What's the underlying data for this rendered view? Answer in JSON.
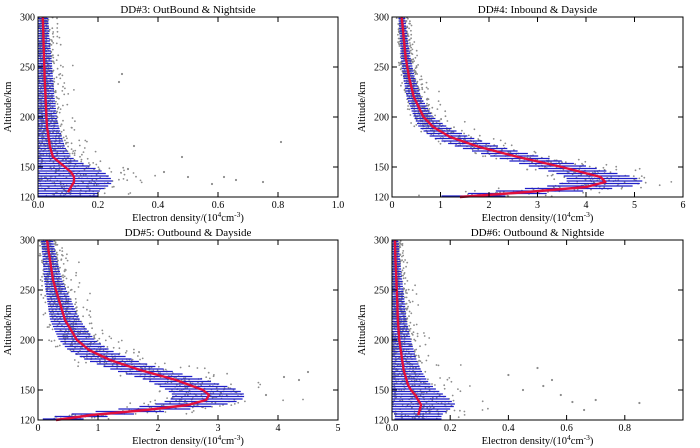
{
  "figure": {
    "kind": "four-panel electron density altitude profiles"
  },
  "chart_data": [
    {
      "type": "scatter",
      "title": "DD#3: OutBound & Nightside",
      "xlabel_main": "Electron density/(10",
      "xlabel_exp": "4",
      "xlabel_unit": "cm",
      "xlabel_uexp": "-3",
      "xlabel_close": ")",
      "ylabel": "Altitude/km",
      "xlim": [
        0,
        1.0
      ],
      "ylim": [
        120,
        300
      ],
      "xticks": [
        0,
        0.2,
        0.4,
        0.6,
        0.8,
        1.0
      ],
      "xtick_labels": [
        "0.0",
        "0.2",
        "0.4",
        "0.6",
        "0.8",
        "1.0"
      ],
      "yticks": [
        150,
        200,
        250,
        300
      ],
      "ytick_labels": [
        "150",
        "200",
        "250",
        "300"
      ],
      "y_label_bottom": "120",
      "mean_profile": {
        "altitude": [
          125,
          130,
          135,
          140,
          145,
          150,
          155,
          160,
          170,
          180,
          190,
          200,
          220,
          240,
          260,
          280,
          300
        ],
        "density": [
          0.1,
          0.11,
          0.12,
          0.12,
          0.11,
          0.09,
          0.07,
          0.05,
          0.04,
          0.035,
          0.03,
          0.028,
          0.025,
          0.022,
          0.02,
          0.018,
          0.016
        ]
      },
      "spread": [
        0.1,
        0.12,
        0.13,
        0.12,
        0.11,
        0.09,
        0.07,
        0.06,
        0.05,
        0.045,
        0.04,
        0.035,
        0.03,
        0.028,
        0.025,
        0.02,
        0.018
      ],
      "scatter_note": "raw measurements (grey dots), outliers up to 0.8",
      "outliers": [
        [
          0.62,
          140
        ],
        [
          0.75,
          135
        ],
        [
          0.5,
          140
        ],
        [
          0.58,
          133
        ],
        [
          0.48,
          160
        ],
        [
          0.81,
          175
        ],
        [
          0.3,
          148
        ],
        [
          0.28,
          243
        ],
        [
          0.27,
          235
        ],
        [
          0.42,
          145
        ],
        [
          0.32,
          171
        ],
        [
          0.66,
          137
        ]
      ]
    },
    {
      "type": "scatter",
      "title": "DD#4: Inbound & Dayside",
      "xlabel_main": "Electron density/(10",
      "xlabel_exp": "4",
      "xlabel_unit": "cm",
      "xlabel_uexp": "-3",
      "xlabel_close": ")",
      "ylabel": "Altitude/km",
      "xlim": [
        0,
        6
      ],
      "ylim": [
        120,
        300
      ],
      "xticks": [
        0,
        1,
        2,
        3,
        4,
        5,
        6
      ],
      "xtick_labels": [
        "0",
        "1",
        "2",
        "3",
        "4",
        "5",
        "6"
      ],
      "yticks": [
        150,
        200,
        250,
        300
      ],
      "ytick_labels": [
        "150",
        "200",
        "250",
        "300"
      ],
      "y_label_bottom": "120",
      "mean_profile": {
        "altitude": [
          120,
          125,
          130,
          135,
          140,
          145,
          150,
          160,
          170,
          180,
          190,
          200,
          220,
          240,
          260,
          280,
          300
        ],
        "density": [
          1.4,
          2.8,
          4.0,
          4.4,
          4.3,
          3.9,
          3.5,
          2.6,
          1.8,
          1.2,
          0.85,
          0.65,
          0.45,
          0.35,
          0.28,
          0.24,
          0.2
        ]
      },
      "spread": [
        0.6,
        0.9,
        0.9,
        0.8,
        0.7,
        0.6,
        0.6,
        0.5,
        0.45,
        0.4,
        0.3,
        0.2,
        0.15,
        0.12,
        0.1,
        0.08,
        0.07
      ],
      "scatter_note": "raw measurements (grey dots)",
      "outliers": []
    },
    {
      "type": "scatter",
      "title": "DD#5: Outbound & Dayside",
      "xlabel_main": "Electron density/(10",
      "xlabel_exp": "4",
      "xlabel_unit": "cm",
      "xlabel_uexp": "-3",
      "xlabel_close": ")",
      "ylabel": "Altitude/km",
      "xlim": [
        0,
        5
      ],
      "ylim": [
        120,
        300
      ],
      "xticks": [
        0,
        1,
        2,
        3,
        4,
        5
      ],
      "xtick_labels": [
        "0",
        "1",
        "2",
        "3",
        "4",
        "5"
      ],
      "yticks": [
        150,
        200,
        250,
        300
      ],
      "ytick_labels": [
        "150",
        "200",
        "250",
        "300"
      ],
      "y_label_bottom": "120",
      "mean_profile": {
        "altitude": [
          120,
          125,
          130,
          135,
          140,
          145,
          150,
          160,
          170,
          180,
          190,
          200,
          220,
          240,
          260,
          280,
          300
        ],
        "density": [
          0.3,
          0.9,
          1.8,
          2.5,
          2.8,
          2.85,
          2.75,
          2.3,
          1.7,
          1.2,
          0.85,
          0.65,
          0.45,
          0.35,
          0.25,
          0.2,
          0.15
        ]
      },
      "spread": [
        0.3,
        0.5,
        0.6,
        0.6,
        0.6,
        0.6,
        0.6,
        0.5,
        0.45,
        0.4,
        0.35,
        0.3,
        0.25,
        0.2,
        0.15,
        0.12,
        0.1
      ],
      "scatter_note": "raw measurements (grey dots), outliers up to 4.5",
      "outliers": [
        [
          4.5,
          168
        ],
        [
          4.35,
          160
        ],
        [
          4.1,
          163
        ],
        [
          3.8,
          145
        ]
      ]
    },
    {
      "type": "scatter",
      "title": "DD#6: Outbound & Nightside",
      "xlabel_main": "Electron density/(10",
      "xlabel_exp": "4",
      "xlabel_unit": "cm",
      "xlabel_uexp": "-3",
      "xlabel_close": ")",
      "ylabel": "Altitude/km",
      "xlim": [
        0,
        1.0
      ],
      "ylim": [
        120,
        300
      ],
      "xticks": [
        0,
        0.2,
        0.4,
        0.6,
        0.8
      ],
      "xtick_labels": [
        "0.0",
        "0.2",
        "0.4",
        "0.6",
        "0.8"
      ],
      "yticks": [
        150,
        200,
        250,
        300
      ],
      "ytick_labels": [
        "150",
        "200",
        "250",
        "300"
      ],
      "y_label_bottom": "120",
      "mean_profile": {
        "altitude": [
          125,
          130,
          135,
          140,
          145,
          150,
          155,
          160,
          170,
          180,
          190,
          200,
          220,
          240,
          260,
          280,
          300
        ],
        "density": [
          0.09,
          0.095,
          0.1,
          0.09,
          0.08,
          0.065,
          0.055,
          0.05,
          0.04,
          0.035,
          0.03,
          0.025,
          0.02,
          0.018,
          0.015,
          0.012,
          0.01
        ]
      },
      "spread": [
        0.08,
        0.1,
        0.12,
        0.11,
        0.1,
        0.09,
        0.08,
        0.07,
        0.06,
        0.05,
        0.045,
        0.04,
        0.03,
        0.025,
        0.02,
        0.016,
        0.012
      ],
      "scatter_note": "raw measurements (grey dots), outliers up to 0.85",
      "outliers": [
        [
          0.62,
          138
        ],
        [
          0.7,
          140
        ],
        [
          0.85,
          137
        ],
        [
          0.55,
          160
        ],
        [
          0.52,
          154
        ],
        [
          0.5,
          172
        ],
        [
          0.58,
          145
        ],
        [
          0.66,
          130
        ],
        [
          0.45,
          150
        ],
        [
          0.4,
          165
        ]
      ]
    }
  ],
  "colors": {
    "scatter": "#8c8c8c",
    "errorbar": "#1f1fc8",
    "mean": "#e0103c",
    "axis": "#000000",
    "background": "#ffffff"
  }
}
